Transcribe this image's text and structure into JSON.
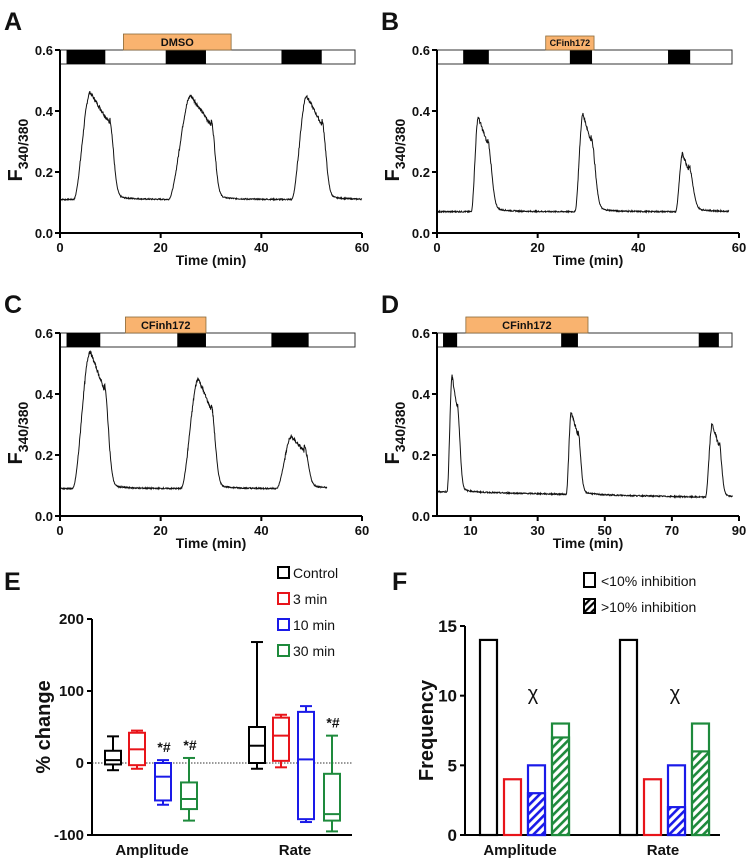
{
  "colors": {
    "control": "#000000",
    "3min": "#e8141a",
    "10min": "#1a1ae8",
    "30min": "#1e8a3c",
    "treatment_box": "#f9b36f"
  },
  "chart_data": [
    {
      "panel": "A",
      "type": "line",
      "xlabel": "Time (min)",
      "ylabel": "F",
      "ylabel_sub": "340/380",
      "xlim": [
        0,
        60
      ],
      "ylim": [
        0,
        0.6
      ],
      "xticks": [
        "0",
        "20",
        "40",
        "60"
      ],
      "xtick_values": [
        0,
        20,
        40,
        60
      ],
      "yticks": [
        "0.0",
        "0.2",
        "0.4",
        "0.6"
      ],
      "ytick_values": [
        0,
        0.2,
        0.4,
        0.6
      ],
      "treatment": {
        "label": "DMSO",
        "start": 12.6,
        "end": 34
      },
      "stim_periods": [
        [
          1.3,
          9
        ],
        [
          21,
          29
        ],
        [
          44,
          52
        ]
      ],
      "baseline": [
        0.11,
        0.11
      ],
      "trace_end": 60,
      "peaks": [
        {
          "onset": 2.7,
          "peak": 6,
          "fall": 9.8,
          "value": 0.46
        },
        {
          "onset": 21.5,
          "peak": 26,
          "fall": 30,
          "value": 0.45
        },
        {
          "onset": 46,
          "peak": 49,
          "fall": 52,
          "value": 0.45
        }
      ]
    },
    {
      "panel": "B",
      "type": "line",
      "xlabel": "Time (min)",
      "ylabel": "F",
      "ylabel_sub": "340/380",
      "xlim": [
        0,
        60
      ],
      "ylim": [
        0,
        0.6
      ],
      "xticks": [
        "0",
        "20",
        "40",
        "60"
      ],
      "xtick_values": [
        0,
        20,
        40,
        60
      ],
      "yticks": [
        "0.0",
        "0.2",
        "0.4",
        "0.6"
      ],
      "ytick_values": [
        0,
        0.2,
        0.4,
        0.6
      ],
      "treatment": {
        "label": "CFinh172",
        "start": 21.6,
        "end": 31.2
      },
      "stim_periods": [
        [
          5.2,
          10.3
        ],
        [
          26.4,
          30.8
        ],
        [
          45.9,
          50.3
        ]
      ],
      "baseline": [
        0.07,
        0.07
      ],
      "trace_end": 58,
      "peaks": [
        {
          "onset": 6.8,
          "peak": 8.2,
          "fall": 10,
          "value": 0.38
        },
        {
          "onset": 27.4,
          "peak": 29,
          "fall": 30.6,
          "value": 0.39
        },
        {
          "onset": 47.4,
          "peak": 48.8,
          "fall": 50,
          "value": 0.26
        }
      ]
    },
    {
      "panel": "C",
      "type": "line",
      "xlabel": "Time (min)",
      "ylabel": "F",
      "ylabel_sub": "340/380",
      "xlim": [
        0,
        60
      ],
      "ylim": [
        0,
        0.6
      ],
      "xticks": [
        "0",
        "20",
        "40",
        "60"
      ],
      "xtick_values": [
        0,
        20,
        40,
        60
      ],
      "yticks": [
        "0.0",
        "0.2",
        "0.4",
        "0.6"
      ],
      "ytick_values": [
        0,
        0.2,
        0.4,
        0.6
      ],
      "treatment": {
        "label": "CFinh172",
        "start": 13,
        "end": 29
      },
      "stim_periods": [
        [
          1.3,
          8
        ],
        [
          23.3,
          29
        ],
        [
          42,
          49.4
        ]
      ],
      "baseline": [
        0.09,
        0.09
      ],
      "trace_end": 53,
      "peaks": [
        {
          "onset": 2.5,
          "peak": 6,
          "fall": 8.8,
          "value": 0.54
        },
        {
          "onset": 24,
          "peak": 27.5,
          "fall": 30,
          "value": 0.45
        },
        {
          "onset": 43,
          "peak": 46,
          "fall": 48.5,
          "value": 0.26
        }
      ]
    },
    {
      "panel": "D",
      "type": "line",
      "xlabel": "Time (min)",
      "ylabel": "F",
      "ylabel_sub": "340/380",
      "xlim": [
        0,
        90
      ],
      "ylim": [
        0,
        0.6
      ],
      "xticks": [
        "10",
        "30",
        "50",
        "70",
        "90"
      ],
      "xtick_values": [
        10,
        30,
        50,
        70,
        90
      ],
      "yticks": [
        "0.0",
        "0.2",
        "0.4",
        "0.6"
      ],
      "ytick_values": [
        0,
        0.2,
        0.4,
        0.6
      ],
      "treatment": {
        "label": "CFinh172",
        "start": 8.6,
        "end": 45
      },
      "stim_periods": [
        [
          1.8,
          6
        ],
        [
          37,
          42
        ],
        [
          78,
          84
        ]
      ],
      "baseline": [
        0.08,
        0.06
      ],
      "trace_end": 88,
      "peaks": [
        {
          "onset": 3,
          "peak": 4.5,
          "fall": 6,
          "value": 0.46
        },
        {
          "onset": 38.5,
          "peak": 40,
          "fall": 42,
          "value": 0.34
        },
        {
          "onset": 80,
          "peak": 82,
          "fall": 84,
          "value": 0.3
        }
      ]
    },
    {
      "panel": "E",
      "type": "box",
      "ylabel": "% change",
      "ylim": [
        -100,
        200
      ],
      "yticks": [
        "-100",
        "0",
        "100",
        "200"
      ],
      "ytick_values": [
        -100,
        0,
        100,
        200
      ],
      "categories": [
        "Amplitude",
        "Rate"
      ],
      "legend": [
        "Control",
        "3 min",
        "10 min",
        "30 min"
      ],
      "legend_placement": "top-right",
      "series": [
        {
          "name": "Control",
          "color_key": "control",
          "boxes": [
            {
              "min": -10,
              "q1": -2,
              "median": 4,
              "q3": 17,
              "max": 37,
              "annotation": ""
            },
            {
              "min": -8,
              "q1": 0,
              "median": 24,
              "q3": 50,
              "max": 168,
              "annotation": ""
            }
          ]
        },
        {
          "name": "3 min",
          "color_key": "3min",
          "boxes": [
            {
              "min": -8,
              "q1": -3,
              "median": 19,
              "q3": 42,
              "max": 45,
              "annotation": ""
            },
            {
              "min": -6,
              "q1": 3,
              "median": 38,
              "q3": 63,
              "max": 67,
              "annotation": ""
            }
          ]
        },
        {
          "name": "10 min",
          "color_key": "10min",
          "boxes": [
            {
              "min": -58,
              "q1": -52,
              "median": -19,
              "q3": 0,
              "max": 4,
              "annotation": "*#"
            },
            {
              "min": -82,
              "q1": -78,
              "median": 5,
              "q3": 71,
              "max": 79,
              "annotation": ""
            }
          ]
        },
        {
          "name": "30 min",
          "color_key": "30min",
          "boxes": [
            {
              "min": -80,
              "q1": -64,
              "median": -50,
              "q3": -27,
              "max": 7,
              "annotation": "*#"
            },
            {
              "min": -95,
              "q1": -80,
              "median": -71,
              "q3": -15,
              "max": 38,
              "annotation": "*#"
            }
          ]
        }
      ]
    },
    {
      "panel": "F",
      "type": "bar",
      "ylabel": "Frequency",
      "ylim": [
        0,
        15
      ],
      "yticks": [
        "0",
        "5",
        "10",
        "15"
      ],
      "ytick_values": [
        0,
        5,
        10,
        15
      ],
      "categories": [
        "Amplitude",
        "Rate"
      ],
      "legend": [
        "<10% inhibition",
        ">10% inhibition"
      ],
      "legend_placement": "top-right",
      "annotations": [
        "χ",
        "χ"
      ],
      "series": [
        {
          "name": "Control",
          "color_key": "control",
          "total": [
            14,
            14
          ],
          "inhibited": [
            0,
            0
          ]
        },
        {
          "name": "3 min",
          "color_key": "3min",
          "total": [
            4,
            4
          ],
          "inhibited": [
            0,
            0
          ]
        },
        {
          "name": "10 min",
          "color_key": "10min",
          "total": [
            5,
            5
          ],
          "inhibited": [
            3,
            2
          ]
        },
        {
          "name": "30 min",
          "color_key": "30min",
          "total": [
            8,
            8
          ],
          "inhibited": [
            7,
            6
          ]
        }
      ]
    }
  ]
}
